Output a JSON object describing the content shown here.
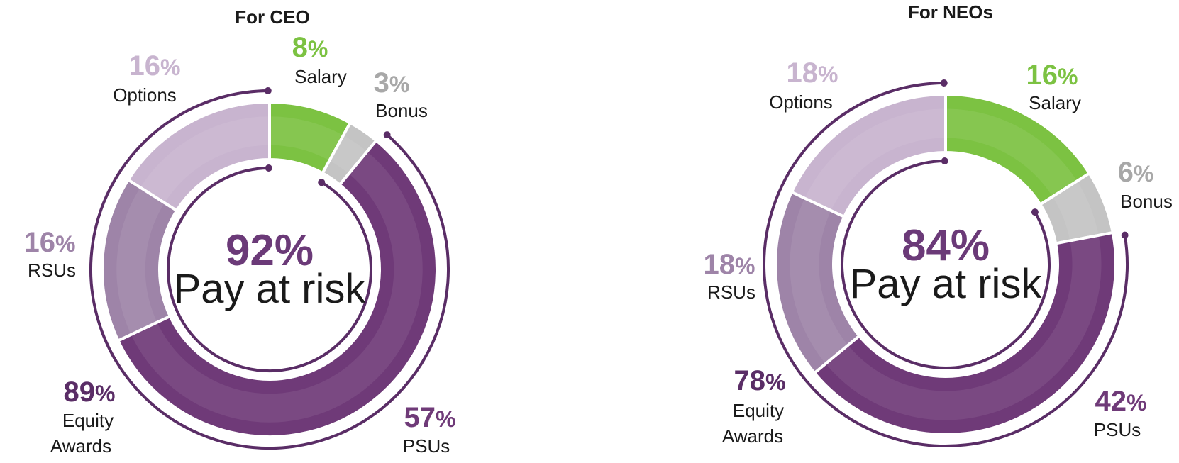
{
  "colors": {
    "salary": "#7cc242",
    "bonus": "#c4c4c4",
    "psus": "#6f3a78",
    "rsus": "#9e84a8",
    "options": "#c8b4cf",
    "bracket": "#5a2d66",
    "pay_at_risk_text": "#6b3a78",
    "equity_text": "#5a2d66"
  },
  "chart_data": [
    {
      "type": "donut",
      "title": "For CEO",
      "segments": [
        {
          "name": "Salary",
          "pct": "8",
          "value": 8
        },
        {
          "name": "Bonus",
          "pct": "3",
          "value": 3
        },
        {
          "name": "PSUs",
          "pct": "57",
          "value": 57
        },
        {
          "name": "RSUs",
          "pct": "16",
          "value": 16
        },
        {
          "name": "Options",
          "pct": "16",
          "value": 16
        }
      ],
      "pay_at_risk": {
        "value": "92%",
        "label": "Pay at risk"
      },
      "equity_awards": {
        "pct": "89",
        "label_line1": "Equity",
        "label_line2": "Awards"
      }
    },
    {
      "type": "donut",
      "title": "For NEOs",
      "segments": [
        {
          "name": "Salary",
          "pct": "16",
          "value": 16
        },
        {
          "name": "Bonus",
          "pct": "6",
          "value": 6
        },
        {
          "name": "PSUs",
          "pct": "42",
          "value": 42
        },
        {
          "name": "RSUs",
          "pct": "18",
          "value": 18
        },
        {
          "name": "Options",
          "pct": "18",
          "value": 18
        }
      ],
      "pay_at_risk": {
        "value": "84%",
        "label": "Pay at risk"
      },
      "equity_awards": {
        "pct": "78",
        "label_line1": "Equity",
        "label_line2": "Awards"
      }
    }
  ],
  "percent_sign": "%"
}
